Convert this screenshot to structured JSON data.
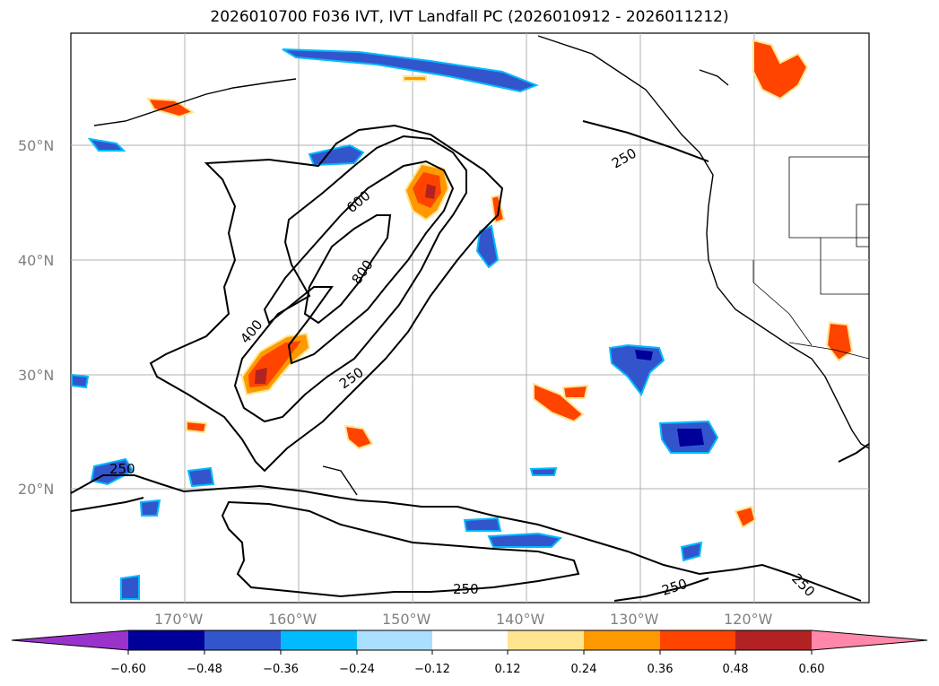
{
  "title": "2026010700 F036 IVT, IVT Landfall PC (2026010912 - 2026011212)",
  "map": {
    "lat_labels": [
      "50°N",
      "40°N",
      "30°N",
      "20°N"
    ],
    "lon_labels": [
      "170°W",
      "160°W",
      "150°W",
      "140°W",
      "130°W",
      "120°W"
    ],
    "contour_labels": [
      "250",
      "600",
      "800",
      "400",
      "250",
      "250",
      "250",
      "250",
      "250"
    ],
    "field_colors": {
      "land_line": "#000000",
      "grid": "#b0b0b0"
    }
  },
  "colorbar": {
    "ticks": [
      "−0.60",
      "−0.48",
      "−0.36",
      "−0.24",
      "−0.12",
      "0.12",
      "0.24",
      "0.36",
      "0.48",
      "0.60"
    ],
    "colors": [
      "#9933cc",
      "#000099",
      "#3355cc",
      "#00bbff",
      "#aadfff",
      "#ffffff",
      "#ffe58f",
      "#ff9900",
      "#ff4400",
      "#b22222",
      "#ff88aa"
    ]
  }
}
